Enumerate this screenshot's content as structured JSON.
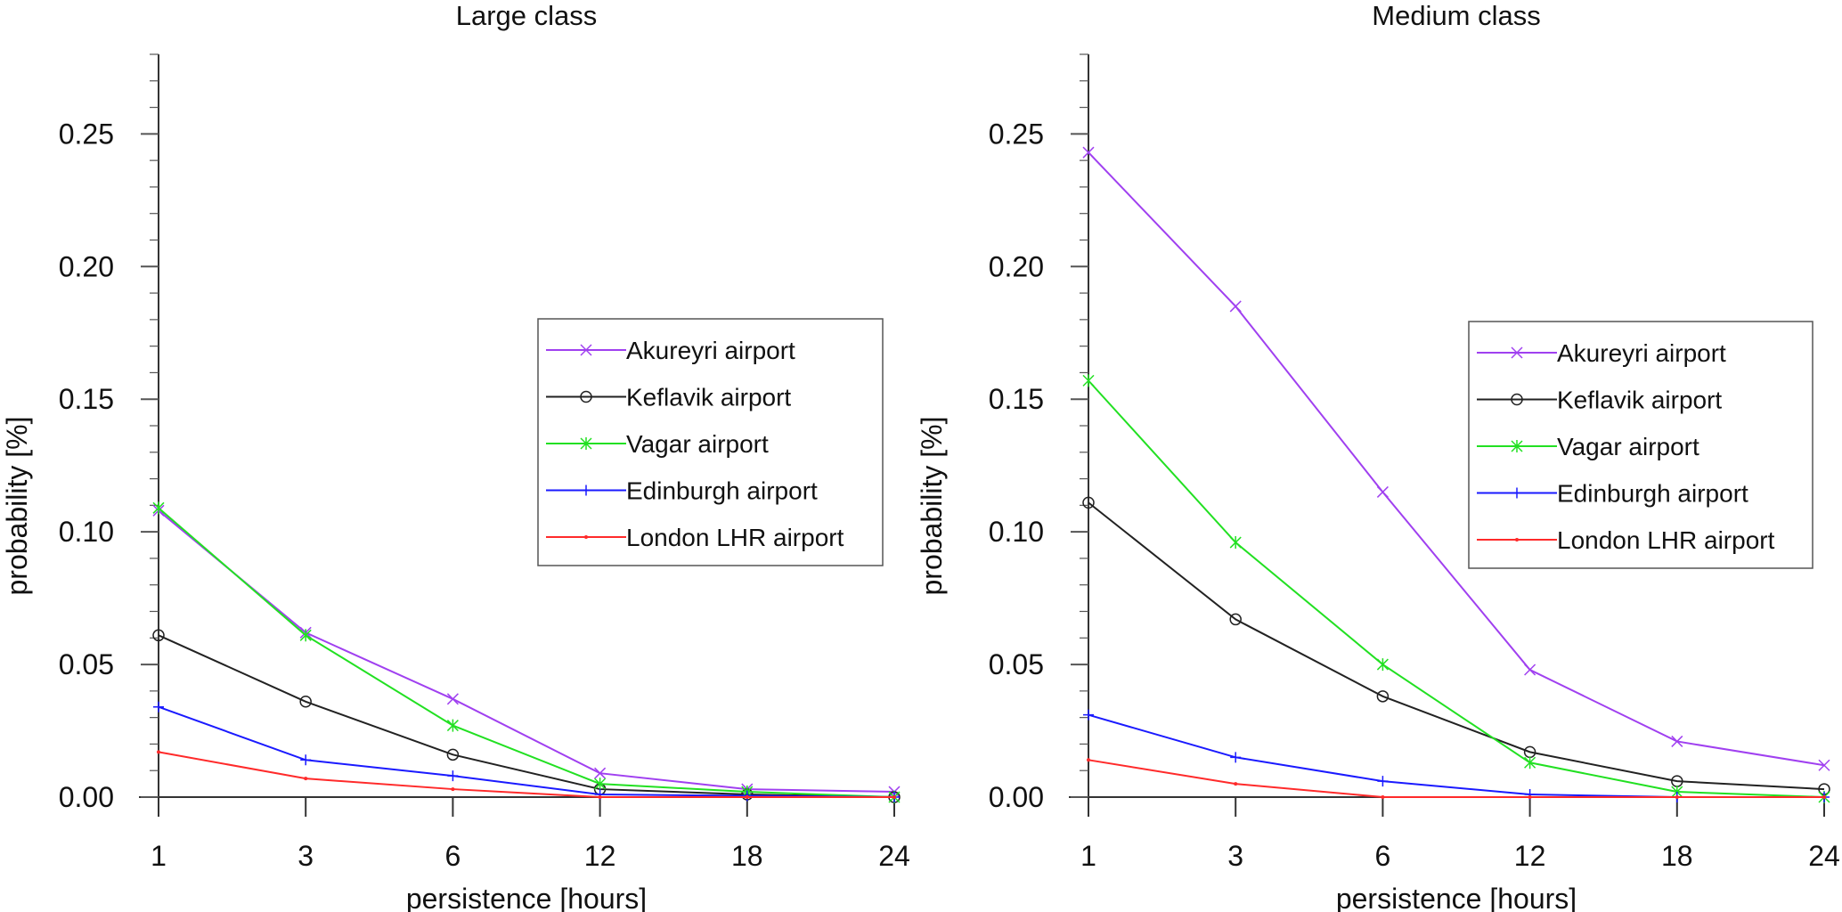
{
  "chart_data": [
    {
      "type": "line",
      "title": "Large class",
      "xlabel": "persistence [hours]",
      "ylabel": "probability [%]",
      "categories": [
        "1",
        "3",
        "6",
        "12",
        "18",
        "24"
      ],
      "ylim": [
        0,
        0.28
      ],
      "yticks": [
        "0.00",
        "0.05",
        "0.10",
        "0.15",
        "0.20",
        "0.25"
      ],
      "legend_position": "right-middle",
      "series": [
        {
          "name": "Akureyri airport",
          "color": "#a040f0",
          "marker": "x",
          "values": [
            0.108,
            0.062,
            0.037,
            0.009,
            0.003,
            0.002
          ]
        },
        {
          "name": "Keflavik airport",
          "color": "#222222",
          "marker": "circle",
          "values": [
            0.061,
            0.036,
            0.016,
            0.003,
            0.001,
            0.0
          ]
        },
        {
          "name": "Vagar airport",
          "color": "#22e022",
          "marker": "asterisk",
          "values": [
            0.109,
            0.061,
            0.027,
            0.005,
            0.002,
            0.0
          ]
        },
        {
          "name": "Edinburgh airport",
          "color": "#1a1aff",
          "marker": "plus",
          "values": [
            0.034,
            0.014,
            0.008,
            0.001,
            0.0005,
            0.0
          ]
        },
        {
          "name": "London LHR airport",
          "color": "#ff2a2a",
          "marker": "dot",
          "values": [
            0.017,
            0.007,
            0.003,
            0.0,
            0.0,
            0.0
          ]
        }
      ]
    },
    {
      "type": "line",
      "title": "Medium class",
      "xlabel": "persistence [hours]",
      "ylabel": "probability [%]",
      "categories": [
        "1",
        "3",
        "6",
        "12",
        "18",
        "24"
      ],
      "ylim": [
        0,
        0.28
      ],
      "yticks": [
        "0.00",
        "0.05",
        "0.10",
        "0.15",
        "0.20",
        "0.25"
      ],
      "legend_position": "right-middle",
      "series": [
        {
          "name": "Akureyri airport",
          "color": "#a040f0",
          "marker": "x",
          "values": [
            0.243,
            0.185,
            0.115,
            0.048,
            0.021,
            0.012
          ]
        },
        {
          "name": "Keflavik airport",
          "color": "#222222",
          "marker": "circle",
          "values": [
            0.111,
            0.067,
            0.038,
            0.017,
            0.006,
            0.003
          ]
        },
        {
          "name": "Vagar airport",
          "color": "#22e022",
          "marker": "asterisk",
          "values": [
            0.157,
            0.096,
            0.05,
            0.013,
            0.002,
            0.0
          ]
        },
        {
          "name": "Edinburgh airport",
          "color": "#1a1aff",
          "marker": "plus",
          "values": [
            0.031,
            0.015,
            0.006,
            0.001,
            0.0,
            0.0
          ]
        },
        {
          "name": "London LHR airport",
          "color": "#ff2a2a",
          "marker": "dot",
          "values": [
            0.014,
            0.005,
            0.0,
            0.0,
            0.0,
            0.0
          ]
        }
      ]
    }
  ]
}
